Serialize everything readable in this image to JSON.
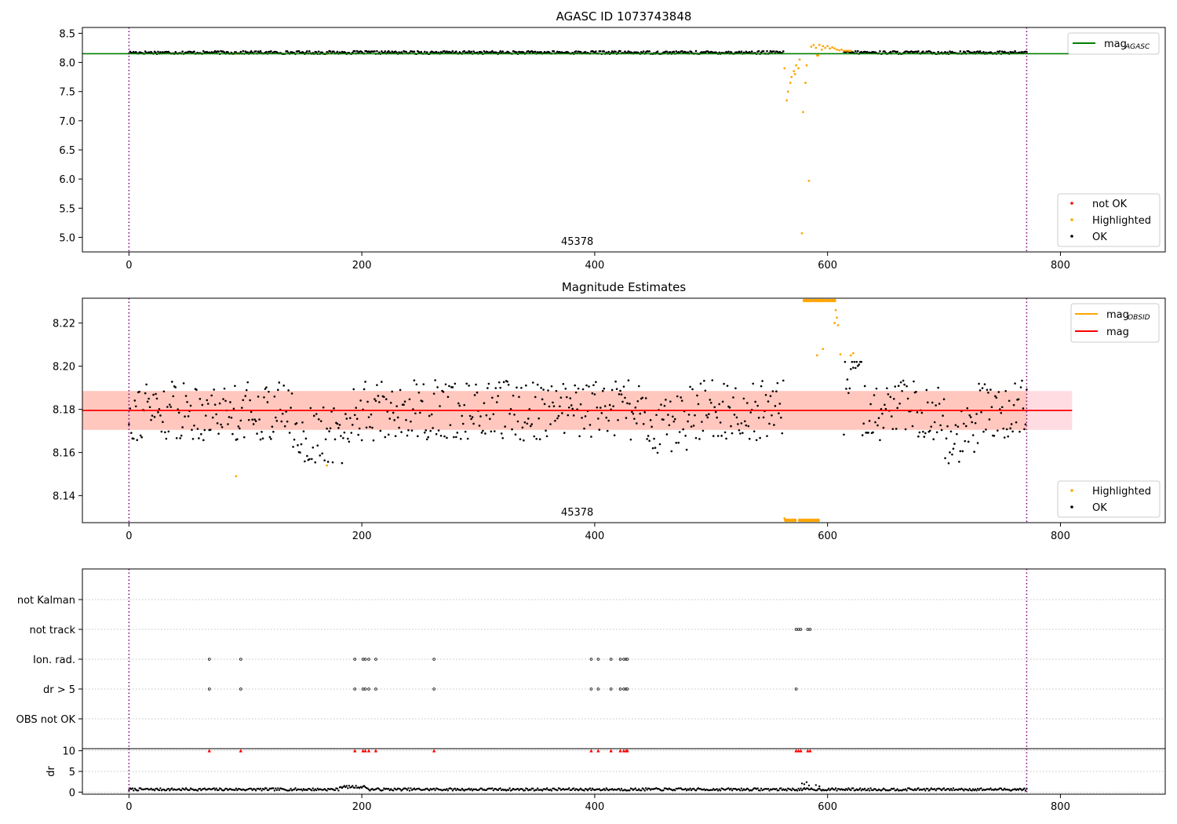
{
  "chart_data": [
    {
      "type": "scatter",
      "title": "AGASC ID 1073743848",
      "xlim": [
        -40,
        890
      ],
      "ylim": [
        4.75,
        8.6
      ],
      "xticks": [
        0,
        200,
        400,
        600,
        800
      ],
      "yticks": [
        5.0,
        5.5,
        6.0,
        6.5,
        7.0,
        7.5,
        8.0,
        8.5
      ],
      "ytick_labels": [
        "5.0",
        "5.5",
        "6.0",
        "6.5",
        "7.0",
        "7.5",
        "8.0",
        "8.5"
      ],
      "obsid_label": {
        "text": "45378",
        "x": 385
      },
      "obsid_bounds": [
        0,
        771
      ],
      "ok_band": {
        "center": 8.17,
        "halfwidth": 0.025
      },
      "agasc_mag": {
        "value": 8.15,
        "x_range": [
          -40,
          810
        ]
      },
      "legend_top": [
        {
          "label": "mag",
          "subscript": "AGASC",
          "color": "#008000",
          "kind": "line"
        }
      ],
      "legend_bottom": [
        {
          "label": "not OK",
          "color": "#ff0000",
          "kind": "point"
        },
        {
          "label": "Highlighted",
          "color": "#ffa500",
          "kind": "point"
        },
        {
          "label": "OK",
          "color": "#000000",
          "kind": "point"
        }
      ],
      "series": [
        {
          "name": "Highlighted",
          "color": "#ffa500",
          "points": [
            [
              92,
              8.15
            ],
            [
              170,
              8.15
            ],
            [
              563,
              7.9
            ],
            [
              565,
              7.35
            ],
            [
              566,
              7.5
            ],
            [
              568,
              7.65
            ],
            [
              569,
              7.75
            ],
            [
              571,
              7.85
            ],
            [
              572,
              7.8
            ],
            [
              573,
              7.95
            ],
            [
              575,
              7.9
            ],
            [
              576,
              8.05
            ],
            [
              578,
              5.07
            ],
            [
              579,
              7.15
            ],
            [
              581,
              7.65
            ],
            [
              582,
              7.95
            ],
            [
              584,
              5.97
            ],
            [
              586,
              8.27
            ],
            [
              588,
              8.3
            ],
            [
              590,
              8.25
            ],
            [
              591,
              8.12
            ],
            [
              592,
              8.12
            ],
            [
              593,
              8.3
            ],
            [
              595,
              8.22
            ],
            [
              596,
              8.28
            ],
            [
              598,
              8.25
            ],
            [
              600,
              8.28
            ],
            [
              602,
              8.24
            ],
            [
              604,
              8.26
            ],
            [
              606,
              8.24
            ],
            [
              608,
              8.22
            ],
            [
              610,
              8.21
            ],
            [
              612,
              8.22
            ],
            [
              614,
              8.2
            ],
            [
              616,
              8.2
            ],
            [
              618,
              8.2
            ],
            [
              620,
              8.2
            ]
          ]
        }
      ]
    },
    {
      "type": "scatter",
      "title": "Magnitude Estimates",
      "xlim": [
        -40,
        890
      ],
      "ylim": [
        8.1275,
        8.2315
      ],
      "xticks": [
        0,
        200,
        400,
        600,
        800
      ],
      "yticks": [
        8.14,
        8.16,
        8.18,
        8.2,
        8.22
      ],
      "ytick_labels": [
        "8.14",
        "8.16",
        "8.18",
        "8.20",
        "8.22"
      ],
      "obsid_label": {
        "text": "45378",
        "x": 385
      },
      "obsid_bounds": [
        0,
        771
      ],
      "mag": {
        "value": 8.1795,
        "x_range": [
          -40,
          810
        ],
        "band": [
          8.1705,
          8.1885
        ],
        "band_obsid_x": [
          -40,
          771
        ]
      },
      "legend_top": [
        {
          "label": "mag",
          "subscript": "OBSID",
          "color": "#ffa500",
          "kind": "line"
        },
        {
          "label": "mag",
          "subscript": "",
          "color": "#ff0000",
          "kind": "line"
        }
      ],
      "legend_bottom": [
        {
          "label": "Highlighted",
          "color": "#ffa500",
          "kind": "point"
        },
        {
          "label": "OK",
          "color": "#000000",
          "kind": "point"
        }
      ],
      "series": [
        {
          "name": "Highlighted",
          "color": "#ffa500",
          "points": [
            [
              92,
              8.149
            ],
            [
              170,
              8.154
            ],
            [
              563,
              8.1295
            ],
            [
              591,
              8.205
            ],
            [
              596,
              8.208
            ],
            [
              606,
              8.22
            ],
            [
              607,
              8.226
            ],
            [
              608,
              8.2225
            ],
            [
              609,
              8.219
            ],
            [
              611,
              8.2055
            ],
            [
              620,
              8.205
            ],
            [
              622,
              8.206
            ]
          ],
          "clipped_top_x": [
            580,
            582,
            584,
            586,
            588,
            590,
            592,
            594,
            596,
            598,
            600,
            602,
            604,
            606
          ],
          "clipped_bottom_x": [
            564,
            566,
            568,
            570,
            572,
            576,
            578,
            580,
            582,
            584,
            586,
            588,
            590,
            592
          ]
        }
      ]
    },
    {
      "type": "scatter",
      "categories": [
        "not Kalman",
        "not track",
        "Ion. rad.",
        "dr > 5",
        "OBS not OK"
      ],
      "xlim": [
        -40,
        890
      ],
      "obsid_bounds": [
        0,
        771
      ],
      "flags": {
        "not track": [
          573,
          575,
          577,
          583,
          585
        ],
        "Ion. rad.": [
          69,
          96,
          194,
          201,
          203,
          206,
          212,
          262,
          397,
          403,
          414,
          422,
          425,
          427,
          428
        ],
        "dr > 5": [
          69,
          96,
          194,
          201,
          203,
          206,
          212,
          262,
          397,
          403,
          414,
          422,
          425,
          427,
          428,
          573
        ]
      }
    },
    {
      "type": "scatter",
      "xlim": [
        -40,
        890
      ],
      "ylim": [
        -0.5,
        10.5
      ],
      "ylabel": "dr",
      "yticks": [
        0,
        5,
        10
      ],
      "ytick_labels": [
        "0",
        "5",
        "10"
      ],
      "xticks": [
        0,
        200,
        400,
        600,
        800
      ],
      "obsid_bounds": [
        0,
        771
      ],
      "clipped_markers_x": [
        69,
        96,
        194,
        201,
        203,
        206,
        212,
        262,
        397,
        403,
        414,
        422,
        425,
        427,
        428,
        573,
        575,
        577,
        583,
        585
      ],
      "bumps": [
        [
          578,
          2.1
        ],
        [
          580,
          1.9
        ],
        [
          582,
          2.4
        ],
        [
          584,
          1.6
        ],
        [
          586,
          0.9
        ],
        [
          590,
          1.7
        ],
        [
          593,
          1.4
        ]
      ]
    }
  ]
}
